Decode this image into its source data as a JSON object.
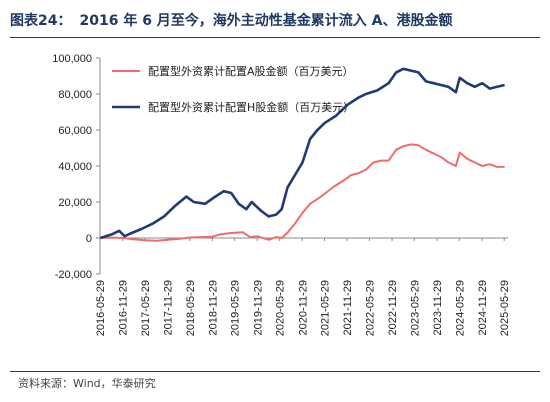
{
  "header": {
    "figure_label": "图表24：",
    "title": "2016 年 6 月至今，海外主动性基金累计流入 A、港股金额"
  },
  "footer": {
    "source": "资料来源：Wind，华泰研究"
  },
  "colors": {
    "series_a": "#f26b6b",
    "series_h": "#1f3a77",
    "title": "#1f3864"
  },
  "chart_data": {
    "type": "line",
    "xlabel": "",
    "ylabel": "",
    "ylim": [
      -20000,
      100000
    ],
    "yticks": [
      -20000,
      0,
      20000,
      40000,
      60000,
      80000,
      100000
    ],
    "ytick_labels": [
      "-20,000",
      "0",
      "20,000",
      "40,000",
      "60,000",
      "80,000",
      "100,000"
    ],
    "xticks": [
      "2016-05-29",
      "2016-11-29",
      "2017-05-29",
      "2017-11-29",
      "2018-05-29",
      "2018-11-29",
      "2019-05-29",
      "2019-11-29",
      "2020-05-29",
      "2020-11-29",
      "2021-05-29",
      "2021-11-29",
      "2022-05-29",
      "2022-11-29",
      "2023-05-29",
      "2023-11-29",
      "2024-05-29",
      "2024-11-29",
      "2025-05-29"
    ],
    "xlim": [
      "2016-05-29",
      "2025-06-29"
    ],
    "grid": false,
    "legend_position": "top-left",
    "series": [
      {
        "name": "配置型外资累计配置A股金额（百万美元）",
        "points": [
          [
            "2016-06-01",
            0
          ],
          [
            "2016-09-01",
            200
          ],
          [
            "2016-12-01",
            0
          ],
          [
            "2017-03-01",
            -800
          ],
          [
            "2017-06-01",
            -1200
          ],
          [
            "2017-09-01",
            -1500
          ],
          [
            "2017-12-01",
            -1000
          ],
          [
            "2018-03-01",
            -500
          ],
          [
            "2018-06-01",
            300
          ],
          [
            "2018-09-01",
            500
          ],
          [
            "2018-12-01",
            800
          ],
          [
            "2019-02-01",
            2000
          ],
          [
            "2019-05-01",
            2800
          ],
          [
            "2019-08-01",
            3200
          ],
          [
            "2019-10-01",
            500
          ],
          [
            "2019-12-01",
            1000
          ],
          [
            "2020-03-01",
            -1000
          ],
          [
            "2020-05-01",
            500
          ],
          [
            "2020-06-15",
            0
          ],
          [
            "2020-08-01",
            3000
          ],
          [
            "2020-10-01",
            8000
          ],
          [
            "2020-12-01",
            14000
          ],
          [
            "2021-02-01",
            19000
          ],
          [
            "2021-05-01",
            23000
          ],
          [
            "2021-08-01",
            28000
          ],
          [
            "2021-11-01",
            32000
          ],
          [
            "2022-01-01",
            35000
          ],
          [
            "2022-03-01",
            36000
          ],
          [
            "2022-05-01",
            38000
          ],
          [
            "2022-07-01",
            42000
          ],
          [
            "2022-09-01",
            43000
          ],
          [
            "2022-11-01",
            43000
          ],
          [
            "2023-01-01",
            49000
          ],
          [
            "2023-03-01",
            51000
          ],
          [
            "2023-05-01",
            52000
          ],
          [
            "2023-07-01",
            51500
          ],
          [
            "2023-09-01",
            49000
          ],
          [
            "2023-11-01",
            47000
          ],
          [
            "2024-01-01",
            45000
          ],
          [
            "2024-03-01",
            42000
          ],
          [
            "2024-05-01",
            40000
          ],
          [
            "2024-06-01",
            47500
          ],
          [
            "2024-08-01",
            44000
          ],
          [
            "2024-10-01",
            42000
          ],
          [
            "2024-12-01",
            40000
          ],
          [
            "2025-02-01",
            41000
          ],
          [
            "2025-04-01",
            39500
          ],
          [
            "2025-06-01",
            39500
          ]
        ]
      },
      {
        "name": "配置型外资累计配置H股金额（百万美元）",
        "points": [
          [
            "2016-06-01",
            0
          ],
          [
            "2016-09-01",
            2000
          ],
          [
            "2016-11-01",
            4000
          ],
          [
            "2016-12-15",
            1000
          ],
          [
            "2017-02-01",
            2500
          ],
          [
            "2017-05-01",
            5000
          ],
          [
            "2017-08-01",
            8000
          ],
          [
            "2017-11-01",
            12000
          ],
          [
            "2018-02-01",
            18000
          ],
          [
            "2018-05-01",
            23000
          ],
          [
            "2018-07-01",
            20000
          ],
          [
            "2018-10-01",
            19000
          ],
          [
            "2018-12-01",
            22000
          ],
          [
            "2019-03-01",
            26000
          ],
          [
            "2019-05-01",
            25000
          ],
          [
            "2019-07-01",
            19000
          ],
          [
            "2019-09-01",
            16000
          ],
          [
            "2019-10-15",
            20000
          ],
          [
            "2020-01-01",
            15000
          ],
          [
            "2020-03-01",
            12000
          ],
          [
            "2020-05-01",
            13000
          ],
          [
            "2020-06-15",
            16000
          ],
          [
            "2020-08-01",
            28000
          ],
          [
            "2020-10-01",
            35000
          ],
          [
            "2020-12-01",
            42000
          ],
          [
            "2021-02-01",
            55000
          ],
          [
            "2021-04-01",
            60000
          ],
          [
            "2021-06-01",
            64000
          ],
          [
            "2021-09-01",
            68000
          ],
          [
            "2021-12-01",
            74000
          ],
          [
            "2022-03-01",
            78000
          ],
          [
            "2022-05-01",
            80000
          ],
          [
            "2022-08-01",
            82000
          ],
          [
            "2022-11-01",
            86000
          ],
          [
            "2023-01-01",
            92000
          ],
          [
            "2023-03-01",
            94000
          ],
          [
            "2023-05-01",
            93000
          ],
          [
            "2023-07-01",
            92000
          ],
          [
            "2023-09-01",
            87000
          ],
          [
            "2023-11-01",
            86000
          ],
          [
            "2024-01-01",
            85000
          ],
          [
            "2024-03-01",
            84000
          ],
          [
            "2024-05-01",
            81000
          ],
          [
            "2024-06-01",
            89000
          ],
          [
            "2024-08-01",
            86000
          ],
          [
            "2024-10-01",
            84000
          ],
          [
            "2024-12-01",
            86000
          ],
          [
            "2025-02-01",
            83000
          ],
          [
            "2025-04-01",
            84000
          ],
          [
            "2025-06-01",
            85000
          ]
        ]
      }
    ]
  }
}
